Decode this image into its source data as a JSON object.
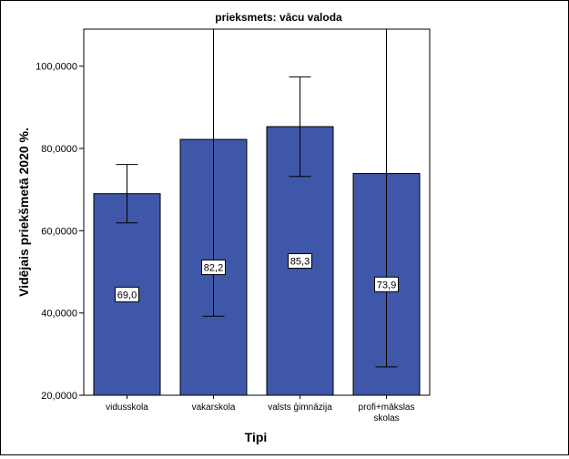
{
  "chart_data": {
    "type": "bar",
    "title": "prieksmets: vācu valoda",
    "xlabel": "Tipi",
    "ylabel": "Vidējais priekšmetā 2020 %.",
    "categories": [
      "vidusskola",
      "vakarskola",
      "valsts ģimnāzija",
      "profi+mākslas skolas"
    ],
    "category_lines": [
      [
        "vidusskola"
      ],
      [
        "vakarskola"
      ],
      [
        "valsts ģimnāzija"
      ],
      [
        "profi+mākslas",
        "skolas"
      ]
    ],
    "values": [
      69.0,
      82.2,
      85.3,
      73.9
    ],
    "value_labels": [
      "69,0",
      "82,2",
      "85,3",
      "73,9"
    ],
    "error_low": [
      61.9,
      39.2,
      73.2,
      26.9
    ],
    "error_high": [
      76.1,
      109.0,
      97.4,
      109.0
    ],
    "ylim": [
      20,
      109
    ],
    "yticks": [
      20,
      40,
      60,
      80,
      100
    ],
    "ytick_labels": [
      "20,0000",
      "40,0000",
      "60,0000",
      "80,0000",
      "100,0000"
    ],
    "bar_color": "#3f57a8",
    "grid": false
  }
}
